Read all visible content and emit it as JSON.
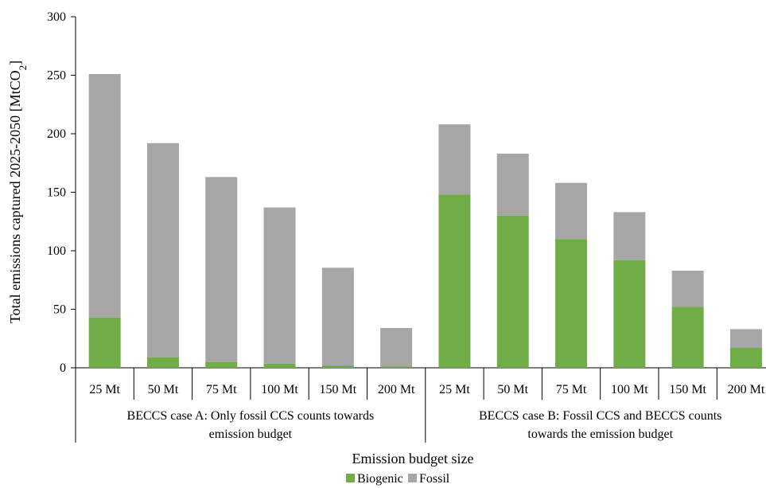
{
  "chart_data": {
    "type": "bar",
    "stacked": true,
    "ylabel": "Total emissions captured 2025-2050 [MtCO₂]",
    "xlabel": "Emission budget size",
    "ylim": [
      0,
      300
    ],
    "yticks": [
      0,
      50,
      100,
      150,
      200,
      250,
      300
    ],
    "grid": false,
    "legend_position": "bottom",
    "groups": [
      {
        "label_lines": [
          "BECCS case A: Only fossil CCS counts towards",
          "emission budget"
        ],
        "categories": [
          "25 Mt",
          "50 Mt",
          "75 Mt",
          "100 Mt",
          "150 Mt",
          "200 Mt"
        ],
        "biogenic": [
          43,
          9,
          5,
          3.5,
          2,
          1
        ],
        "fossil": [
          208,
          183,
          158,
          133.5,
          83.5,
          33
        ]
      },
      {
        "label_lines": [
          "BECCS case B: Fossil CCS and BECCS counts",
          "towards the emission budget"
        ],
        "categories": [
          "25 Mt",
          "50 Mt",
          "75 Mt",
          "100 Mt",
          "150 Mt",
          "200 Mt"
        ],
        "biogenic": [
          148,
          130,
          110,
          92,
          52,
          17
        ],
        "fossil": [
          60,
          53,
          48,
          41,
          31,
          16
        ]
      }
    ],
    "series": [
      {
        "name": "Biogenic",
        "color": "#70ad47"
      },
      {
        "name": "Fossil",
        "color": "#a6a6a6"
      }
    ]
  }
}
